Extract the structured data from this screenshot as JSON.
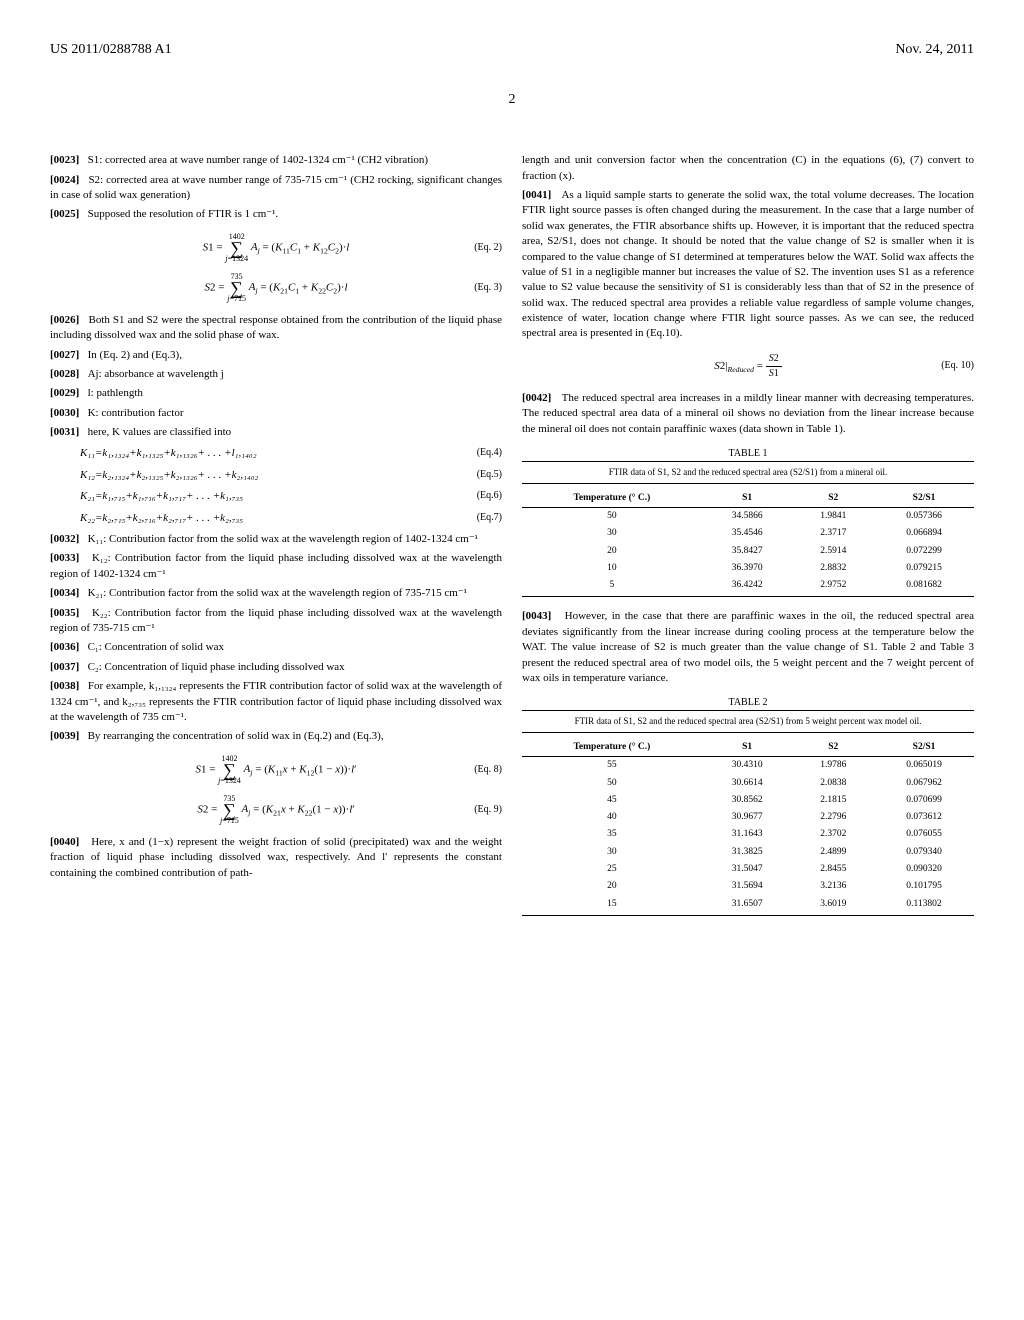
{
  "header": {
    "docNumber": "US 2011/0288788 A1",
    "date": "Nov. 24, 2011",
    "pageNumber": "2"
  },
  "leftCol": {
    "p0023": "S1: corrected area at wave number range of 1402-1324 cm⁻¹ (CH2 vibration)",
    "p0024": "S2: corrected area at wave number range of 735-715 cm⁻¹ (CH2 rocking, significant changes in case of solid wax generation)",
    "p0025": "Supposed the resolution of FTIR is 1 cm⁻¹.",
    "eq2_label": "(Eq. 2)",
    "eq3_label": "(Eq. 3)",
    "p0026": "Both S1 and S2 were the spectral response obtained from the contribution of the liquid phase including dissolved wax and the solid phase of wax.",
    "p0027": "In (Eq. 2) and (Eq.3),",
    "p0028": "Aj: absorbance at wavelength j",
    "p0029": "l: pathlength",
    "p0030": "K: contribution factor",
    "p0031": "here, K values are classified into",
    "eq4": "K₁₁=k₁,₁₃₂₄+k₁,₁₃₂₅+k₁,₁₃₂₆+ . . . +l₁,₁₄₀₂",
    "eq4_label": "(Eq.4)",
    "eq5": "K₁₂=k₂,₁₃₂₄+k₂,₁₃₂₅+k₂,₁₃₂₆+ . . . +k₂,₁₄₀₂",
    "eq5_label": "(Eq.5)",
    "eq6": "K₂₁=k₁,₇₁₅+k₁,₇₁₆+k₁,₇₁₇+ . . . +k₁,₇₃₅",
    "eq6_label": "(Eq.6)",
    "eq7": "K₂₂=k₂,₇₁₅+k₂,₇₁₆+k₂,₇₁₇+ . . . +k₂,₇₃₅",
    "eq7_label": "(Eq.7)",
    "p0032": "K₁₁: Contribution factor from the solid wax at the wavelength region of 1402-1324 cm⁻¹",
    "p0033": "K₁₂: Contribution factor from the liquid phase including dissolved wax at the wavelength region of 1402-1324 cm⁻¹",
    "p0034": "K₂₁: Contribution factor from the solid wax at the wavelength region of 735-715 cm⁻¹",
    "p0035": "K₂₂: Contribution factor from the liquid phase including dissolved wax at the wavelength region of 735-715 cm⁻¹",
    "p0036": "C₁: Concentration of solid wax",
    "p0037": "C₂: Concentration of liquid phase including dissolved wax",
    "p0038": "For example, k₁,₁₃₂₄ represents the FTIR contribution factor of solid wax at the wavelength of 1324 cm⁻¹, and k₂,₇₃₅ represents the FTIR contribution factor of liquid phase including dissolved wax at the wavelength of 735 cm⁻¹.",
    "p0039": "By rearranging the concentration of solid wax in (Eq.2) and (Eq.3),",
    "eq8_label": "(Eq. 8)",
    "eq9_label": "(Eq. 9)",
    "p0040": "Here, x and (1−x) represent the weight fraction of solid (precipitated) wax and the weight fraction of liquid phase including dissolved wax, respectively. And l' represents the constant containing the combined contribution of path-"
  },
  "rightCol": {
    "p0040cont": "length and unit conversion factor when the concentration (C) in the equations (6), (7) convert to fraction (x).",
    "p0041": "As a liquid sample starts to generate the solid wax, the total volume decreases. The location FTIR light source passes is often changed during the measurement. In the case that a large number of solid wax generates, the FTIR absorbance shifts up. However, it is important that the reduced spectra area, S2/S1, does not change. It should be noted that the value change of S2 is smaller when it is compared to the value change of S1 determined at temperatures below the WAT. Solid wax affects the value of S1 in a negligible manner but increases the value of S2. The invention uses S1 as a reference value to S2 value because the sensitivity of S1 is considerably less than that of S2 in the presence of solid wax. The reduced spectral area provides a reliable value regardless of sample volume changes, existence of water, location change where FTIR light source passes. As we can see, the reduced spectral area is presented in (Eq.10).",
    "eq10_label": "(Eq. 10)",
    "p0042": "The reduced spectral area increases in a mildly linear manner with decreasing temperatures. The reduced spectral area data of a mineral oil shows no deviation from the linear increase because the mineral oil does not contain paraffinic waxes (data shown in Table 1).",
    "p0043": "However, in the case that there are paraffinic waxes in the oil, the reduced spectral area deviates significantly from the linear increase during cooling process at the temperature below the WAT. The value increase of S2 is much greater than the value change of S1. Table 2 and Table 3 present the reduced spectral area of two model oils, the 5 weight percent and the 7 weight percent of wax oils in temperature variance."
  },
  "table1": {
    "title": "TABLE 1",
    "caption": "FTIR data of S1, S2 and the reduced spectral area (S2/S1) from a mineral oil.",
    "columns": [
      "Temperature (° C.)",
      "S1",
      "S2",
      "S2/S1"
    ],
    "rows": [
      [
        "50",
        "34.5866",
        "1.9841",
        "0.057366"
      ],
      [
        "30",
        "35.4546",
        "2.3717",
        "0.066894"
      ],
      [
        "20",
        "35.8427",
        "2.5914",
        "0.072299"
      ],
      [
        "10",
        "36.3970",
        "2.8832",
        "0.079215"
      ],
      [
        "5",
        "36.4242",
        "2.9752",
        "0.081682"
      ]
    ]
  },
  "table2": {
    "title": "TABLE 2",
    "caption": "FTIR data of S1, S2 and the reduced spectral area (S2/S1) from 5 weight percent wax model oil.",
    "columns": [
      "Temperature (° C.)",
      "S1",
      "S2",
      "S2/S1"
    ],
    "rows": [
      [
        "55",
        "30.4310",
        "1.9786",
        "0.065019"
      ],
      [
        "50",
        "30.6614",
        "2.0838",
        "0.067962"
      ],
      [
        "45",
        "30.8562",
        "2.1815",
        "0.070699"
      ],
      [
        "40",
        "30.9677",
        "2.2796",
        "0.073612"
      ],
      [
        "35",
        "31.1643",
        "2.3702",
        "0.076055"
      ],
      [
        "30",
        "31.3825",
        "2.4899",
        "0.079340"
      ],
      [
        "25",
        "31.5047",
        "2.8455",
        "0.090320"
      ],
      [
        "20",
        "31.5694",
        "3.2136",
        "0.101795"
      ],
      [
        "15",
        "31.6507",
        "3.6019",
        "0.113802"
      ]
    ]
  }
}
